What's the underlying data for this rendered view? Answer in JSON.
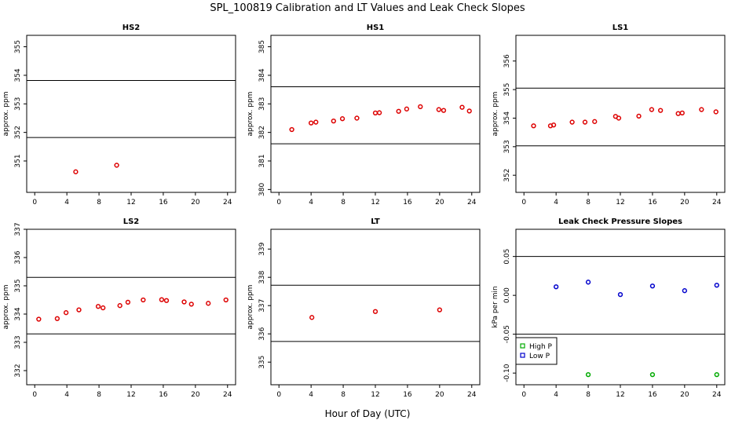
{
  "figure": {
    "title": "SPL_100819  Calibration and LT Values and Leak Check Slopes",
    "xlabel": "Hour of Day (UTC)"
  },
  "chart_data": [
    {
      "type": "scatter",
      "title": "HS2",
      "ylabel": "approx. ppm",
      "xlim": [
        -1,
        25
      ],
      "ylim": [
        349.9,
        355.4
      ],
      "xticks": [
        0,
        4,
        8,
        12,
        16,
        20,
        24
      ],
      "yticks": [
        351,
        352,
        353,
        354,
        355
      ],
      "hlines": [
        351.82,
        353.82
      ],
      "series": [
        {
          "color": "#dd0000",
          "x": [
            5.1,
            10.2
          ],
          "y": [
            350.62,
            350.85
          ]
        }
      ]
    },
    {
      "type": "scatter",
      "title": "HS1",
      "ylabel": "approx. ppm",
      "xlim": [
        -1,
        25
      ],
      "ylim": [
        379.9,
        385.4
      ],
      "xticks": [
        0,
        4,
        8,
        12,
        16,
        20,
        24
      ],
      "yticks": [
        380,
        381,
        382,
        383,
        384,
        385
      ],
      "hlines": [
        381.6,
        383.6
      ],
      "series": [
        {
          "color": "#dd0000",
          "x": [
            1.6,
            4.0,
            4.6,
            6.8,
            7.9,
            9.7,
            12.0,
            12.5,
            14.9,
            15.9,
            17.6,
            19.9,
            20.5,
            22.8,
            23.7
          ],
          "y": [
            382.1,
            382.33,
            382.36,
            382.4,
            382.48,
            382.5,
            382.68,
            382.69,
            382.74,
            382.82,
            382.9,
            382.8,
            382.77,
            382.88,
            382.75
          ]
        }
      ]
    },
    {
      "type": "scatter",
      "title": "LS1",
      "ylabel": "approx. ppm",
      "xlim": [
        -1,
        25
      ],
      "ylim": [
        351.4,
        356.9
      ],
      "xticks": [
        0,
        4,
        8,
        12,
        16,
        20,
        24
      ],
      "yticks": [
        352,
        353,
        354,
        355,
        356
      ],
      "hlines": [
        353.03,
        355.05
      ],
      "series": [
        {
          "color": "#dd0000",
          "x": [
            1.2,
            3.3,
            3.7,
            6.0,
            7.6,
            8.8,
            11.4,
            11.8,
            14.3,
            15.9,
            17.0,
            19.2,
            19.7,
            22.1,
            23.9
          ],
          "y": [
            353.73,
            353.73,
            353.76,
            353.86,
            353.86,
            353.88,
            354.06,
            354.0,
            354.07,
            354.3,
            354.27,
            354.16,
            354.18,
            354.3,
            354.22
          ]
        }
      ]
    },
    {
      "type": "scatter",
      "title": "LS2",
      "ylabel": "approx. ppm",
      "xlim": [
        -1,
        25
      ],
      "ylim": [
        331.5,
        337.0
      ],
      "xticks": [
        0,
        4,
        8,
        12,
        16,
        20,
        24
      ],
      "yticks": [
        332,
        333,
        334,
        335,
        336,
        337
      ],
      "hlines": [
        333.3,
        335.3
      ],
      "series": [
        {
          "color": "#dd0000",
          "x": [
            0.5,
            2.8,
            3.9,
            5.5,
            7.9,
            8.5,
            10.6,
            11.6,
            13.5,
            15.8,
            16.4,
            18.6,
            19.5,
            21.6,
            23.8
          ],
          "y": [
            333.82,
            333.84,
            334.05,
            334.15,
            334.27,
            334.22,
            334.3,
            334.42,
            334.5,
            334.51,
            334.48,
            334.43,
            334.35,
            334.38,
            334.5
          ]
        }
      ]
    },
    {
      "type": "scatter",
      "title": "LT",
      "ylabel": "approx. ppm",
      "xlim": [
        -1,
        25
      ],
      "ylim": [
        334.2,
        339.7
      ],
      "xticks": [
        0,
        4,
        8,
        12,
        16,
        20,
        24
      ],
      "yticks": [
        335,
        336,
        337,
        338,
        339
      ],
      "hlines": [
        335.73,
        337.72
      ],
      "series": [
        {
          "color": "#dd0000",
          "x": [
            4.1,
            12.0,
            20.0
          ],
          "y": [
            336.58,
            336.79,
            336.85
          ]
        }
      ]
    },
    {
      "type": "scatter",
      "title": "Leak Check Pressure Slopes",
      "ylabel": "kPa per min",
      "xlim": [
        -1,
        25
      ],
      "ylim": [
        -0.115,
        0.085
      ],
      "xticks": [
        0,
        4,
        8,
        12,
        16,
        20,
        24
      ],
      "yticks": [
        -0.1,
        -0.05,
        0.0,
        0.05
      ],
      "ytick_labels": [
        "-0.10",
        "-0.05",
        "0.00",
        "0.05"
      ],
      "hlines": [
        -0.05,
        0.05
      ],
      "legend": {
        "placement": "bottom-left"
      },
      "series": [
        {
          "name": "High P",
          "color": "#00aa00",
          "x": [
            8,
            16,
            24
          ],
          "y": [
            -0.102,
            -0.102,
            -0.102
          ]
        },
        {
          "name": "Low P",
          "color": "#0000cc",
          "x": [
            4,
            8,
            12,
            16,
            20,
            24
          ],
          "y": [
            0.011,
            0.017,
            0.001,
            0.012,
            0.006,
            0.013
          ]
        }
      ]
    }
  ]
}
